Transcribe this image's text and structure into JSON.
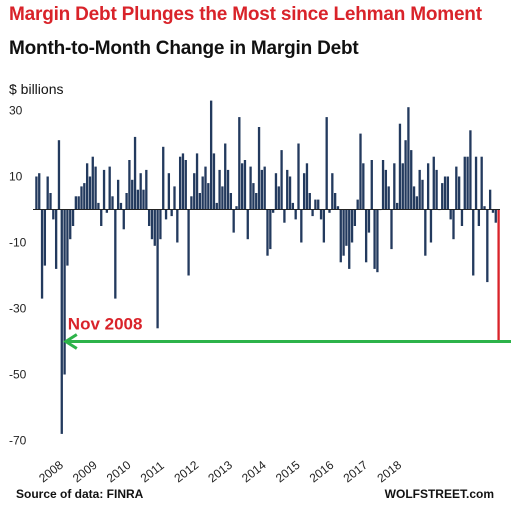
{
  "title": "Margin Debt Plunges the Most since Lehman Moment",
  "subtitle": "Month-to-Month Change in Margin Debt",
  "unit_label": "$ billions",
  "source": "Source of data: FINRA",
  "brand": "WOLFSTREET.com",
  "chart_data": {
    "type": "bar",
    "title": "Month-to-Month Change in Margin Debt",
    "ylabel": "$ billions",
    "ylim": [
      -70,
      30
    ],
    "yticks": [
      30,
      10,
      -10,
      -30,
      -50,
      -70
    ],
    "xtick_labels": [
      "2008",
      "2009",
      "2010",
      "2011",
      "2012",
      "2013",
      "2014",
      "2015",
      "2016",
      "2017",
      "2018"
    ],
    "grid": false,
    "colors": {
      "bars": "#233a5e",
      "highlight": "#d9232a",
      "arrow": "#2db34a",
      "annotation": "#d9232a"
    },
    "values": [
      10,
      11,
      -27,
      -17,
      10,
      5,
      -3,
      -18,
      21,
      -68,
      -50,
      -17,
      -9,
      -5,
      4,
      4,
      7,
      8,
      14,
      10,
      16,
      13,
      2,
      -5,
      12,
      -1,
      13,
      4,
      -27,
      9,
      2,
      -6,
      5,
      15,
      9,
      22,
      6,
      11,
      6,
      12,
      -5,
      -9,
      -11,
      -36,
      -9,
      19,
      -3,
      11,
      -2,
      7,
      -10,
      16,
      17,
      15,
      -20,
      4,
      11,
      17,
      5,
      10,
      13,
      8,
      33,
      17,
      2,
      12,
      7,
      20,
      12,
      5,
      -7,
      1,
      28,
      14,
      15,
      -9,
      13,
      8,
      5,
      25,
      12,
      13,
      -14,
      -12,
      -1,
      11,
      7,
      18,
      -4,
      12,
      10,
      2,
      -3,
      20,
      -10,
      11,
      14,
      5,
      -2,
      3,
      3,
      -3,
      -10,
      28,
      -1,
      11,
      5,
      1,
      -16,
      -14,
      -11,
      -18,
      -10,
      -5,
      3,
      23,
      14,
      -16,
      -7,
      15,
      -18,
      -19,
      0,
      15,
      12,
      7,
      -12,
      14,
      2,
      26,
      14,
      21,
      31,
      18,
      7,
      4,
      12,
      9,
      -14,
      14,
      -10,
      16,
      12,
      0,
      8,
      10,
      10,
      -3,
      -9,
      13,
      10,
      -5,
      16,
      16,
      24,
      -20,
      16,
      -5,
      16,
      1,
      -22,
      6,
      -1,
      -4,
      -40
    ],
    "annotation": {
      "text": "Nov 2008",
      "from_index": 169,
      "to_index": 9,
      "level": -40
    }
  }
}
